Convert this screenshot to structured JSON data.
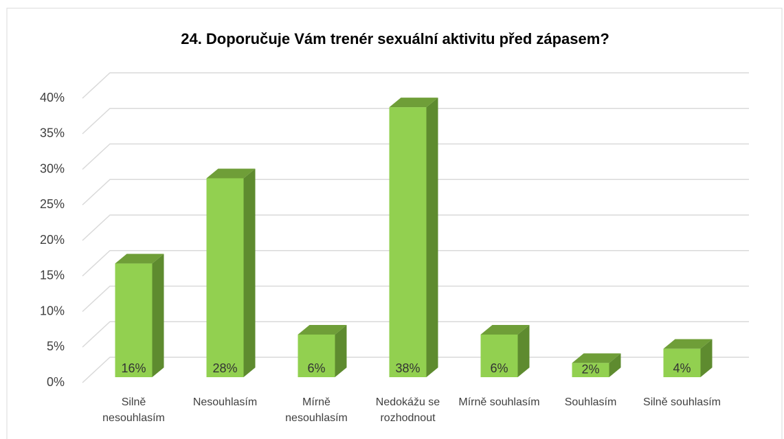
{
  "chart_data": {
    "type": "bar3d",
    "title": "24. Doporučuje Vám trenér sexuální aktivitu před zápasem?",
    "categories": [
      "Silně nesouhlasím",
      "Nesouhlasím",
      "Mírně nesouhlasím",
      "Nedokážu se rozhodnout",
      "Mírně souhlasím",
      "Souhlasím",
      "Silně souhlasím"
    ],
    "values": [
      16,
      28,
      6,
      38,
      6,
      2,
      4
    ],
    "value_labels": [
      "16%",
      "28%",
      "6%",
      "38%",
      "6%",
      "2%",
      "4%"
    ],
    "color": "#92d050",
    "ylim": [
      0,
      40
    ],
    "yticks": [
      {
        "value": 0,
        "label": "0%"
      },
      {
        "value": 5,
        "label": "5%"
      },
      {
        "value": 10,
        "label": "10%"
      },
      {
        "value": 15,
        "label": "15%"
      },
      {
        "value": 20,
        "label": "20%"
      },
      {
        "value": 25,
        "label": "25%"
      },
      {
        "value": 30,
        "label": "30%"
      },
      {
        "value": 35,
        "label": "35%"
      },
      {
        "value": 40,
        "label": "40%"
      }
    ],
    "grid": true
  }
}
